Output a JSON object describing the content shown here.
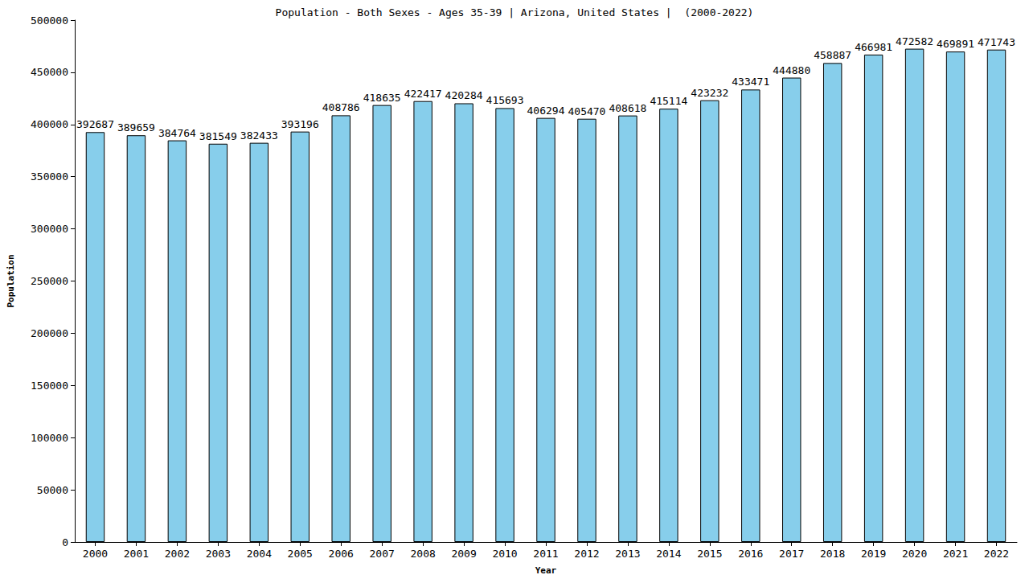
{
  "chart_data": {
    "type": "bar",
    "title": "Population - Both Sexes - Ages 35-39 | Arizona, United States |  (2000-2022)",
    "x_label": "Year",
    "y_label": "Population",
    "categories": [
      "2000",
      "2001",
      "2002",
      "2003",
      "2004",
      "2005",
      "2006",
      "2007",
      "2008",
      "2009",
      "2010",
      "2011",
      "2012",
      "2013",
      "2014",
      "2015",
      "2016",
      "2017",
      "2018",
      "2019",
      "2020",
      "2021",
      "2022"
    ],
    "values": [
      392687,
      389659,
      384764,
      381549,
      382433,
      393196,
      408786,
      418635,
      422417,
      420284,
      415693,
      406294,
      405470,
      408618,
      415114,
      423232,
      433471,
      444880,
      458887,
      466981,
      472582,
      469891,
      471743
    ],
    "color": "#87ceeb",
    "ylim": [
      0,
      500000
    ],
    "yticks": [
      0,
      50000,
      100000,
      150000,
      200000,
      250000,
      300000,
      350000,
      400000,
      450000,
      500000
    ],
    "grid": false,
    "data_labels": true
  }
}
